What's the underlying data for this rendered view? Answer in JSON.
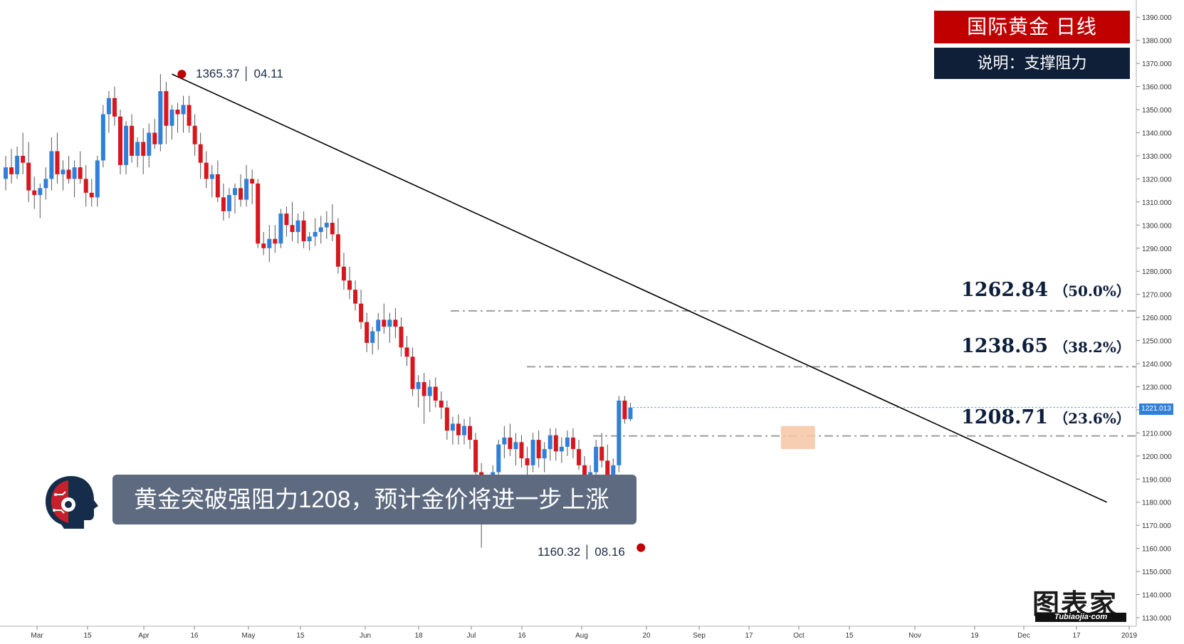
{
  "panel": {
    "title": "国际黄金  日线",
    "subtitle": "说明：支撑阻力"
  },
  "banner_text": "黄金突破强阻力1208，预计金价将进一步上涨",
  "logo": {
    "main": "图表家",
    "sub": "Tubiaojia·com"
  },
  "colors": {
    "up": "#2f80d8",
    "down": "#d8161d",
    "trendline": "#000000",
    "fib_line": "#9e9e9e",
    "marker": "#c00000",
    "panel_red": "#c00000",
    "panel_navy": "#0f1f38",
    "box": "#f7c6a5"
  },
  "chart_data": {
    "type": "candlestick",
    "instrument": "国际黄金",
    "timeframe": "日线",
    "ylim": [
      1130,
      1395
    ],
    "y_ticks": [
      "1390.000",
      "1380.000",
      "1370.000",
      "1360.000",
      "1350.000",
      "1340.000",
      "1330.000",
      "1320.000",
      "1310.000",
      "1300.000",
      "1290.000",
      "1280.000",
      "1270.000",
      "1260.000",
      "1250.000",
      "1240.000",
      "1230.000",
      "1220.000",
      "1210.000",
      "1200.000",
      "1190.000",
      "1180.000",
      "1170.000",
      "1160.000",
      "1150.000",
      "1140.000",
      "1130.000"
    ],
    "x_ticks": [
      "Mar",
      "15",
      "Apr",
      "16",
      "May",
      "15",
      "Jun",
      "18",
      "Jul",
      "16",
      "Aug",
      "20",
      "Sep",
      "17",
      "Oct",
      "15",
      "Nov",
      "19",
      "Dec",
      "17",
      "2019"
    ],
    "current_price": "1221.013",
    "high_label": "1365.37 │ 04.11",
    "low_label": "1160.32 │ 08.16",
    "fib_levels": [
      {
        "value": "1262.84",
        "pct": "（50.0%）"
      },
      {
        "value": "1238.65",
        "pct": "（38.2%）"
      },
      {
        "value": "1208.71",
        "pct": "（23.6%）"
      }
    ],
    "trendline": [
      [
        0,
        1365.37
      ],
      [
        143,
        1180
      ]
    ],
    "grid": false,
    "candles": [
      [
        1320,
        1330,
        1315,
        1325
      ],
      [
        1325,
        1333,
        1318,
        1322
      ],
      [
        1322,
        1334,
        1320,
        1330
      ],
      [
        1330,
        1340,
        1322,
        1327
      ],
      [
        1327,
        1336,
        1310,
        1315
      ],
      [
        1315,
        1321,
        1307,
        1313
      ],
      [
        1313,
        1318,
        1303,
        1316
      ],
      [
        1316,
        1325,
        1311,
        1320
      ],
      [
        1320,
        1338,
        1315,
        1332
      ],
      [
        1332,
        1340,
        1318,
        1322
      ],
      [
        1322,
        1328,
        1315,
        1324
      ],
      [
        1324,
        1330,
        1318,
        1320
      ],
      [
        1320,
        1328,
        1312,
        1325
      ],
      [
        1325,
        1332,
        1318,
        1320
      ],
      [
        1320,
        1326,
        1308,
        1314
      ],
      [
        1314,
        1320,
        1308,
        1312
      ],
      [
        1312,
        1330,
        1308,
        1328
      ],
      [
        1328,
        1352,
        1325,
        1348
      ],
      [
        1348,
        1358,
        1340,
        1355
      ],
      [
        1355,
        1360,
        1343,
        1347
      ],
      [
        1347,
        1350,
        1322,
        1326
      ],
      [
        1326,
        1345,
        1322,
        1343
      ],
      [
        1343,
        1348,
        1327,
        1330
      ],
      [
        1330,
        1338,
        1325,
        1336
      ],
      [
        1336,
        1342,
        1322,
        1330
      ],
      [
        1330,
        1344,
        1325,
        1340
      ],
      [
        1340,
        1346,
        1333,
        1335
      ],
      [
        1335,
        1365.37,
        1332,
        1358
      ],
      [
        1358,
        1362,
        1335,
        1343
      ],
      [
        1343,
        1352,
        1337,
        1350
      ],
      [
        1350,
        1353,
        1340,
        1348
      ],
      [
        1348,
        1356,
        1340,
        1352
      ],
      [
        1352,
        1356,
        1340,
        1343
      ],
      [
        1343,
        1348,
        1330,
        1335
      ],
      [
        1335,
        1340,
        1320,
        1327
      ],
      [
        1327,
        1332,
        1316,
        1320
      ],
      [
        1320,
        1326,
        1312,
        1322
      ],
      [
        1322,
        1328,
        1310,
        1312
      ],
      [
        1312,
        1318,
        1302,
        1306
      ],
      [
        1306,
        1316,
        1303,
        1313
      ],
      [
        1313,
        1318,
        1305,
        1316
      ],
      [
        1316,
        1322,
        1308,
        1311
      ],
      [
        1311,
        1326,
        1308,
        1320
      ],
      [
        1320,
        1324,
        1309,
        1318
      ],
      [
        1318,
        1320,
        1290,
        1292
      ],
      [
        1292,
        1297,
        1287,
        1290
      ],
      [
        1290,
        1300,
        1284,
        1294
      ],
      [
        1294,
        1300,
        1288,
        1292
      ],
      [
        1292,
        1307,
        1290,
        1305
      ],
      [
        1305,
        1308,
        1295,
        1300
      ],
      [
        1300,
        1310,
        1293,
        1297
      ],
      [
        1297,
        1305,
        1292,
        1302
      ],
      [
        1302,
        1306,
        1290,
        1293
      ],
      [
        1293,
        1297,
        1289,
        1295
      ],
      [
        1295,
        1303,
        1291,
        1297
      ],
      [
        1297,
        1304,
        1292,
        1299
      ],
      [
        1299,
        1306,
        1294,
        1301
      ],
      [
        1301,
        1309,
        1293,
        1296
      ],
      [
        1296,
        1303,
        1279,
        1282
      ],
      [
        1282,
        1288,
        1272,
        1276
      ],
      [
        1276,
        1282,
        1268,
        1272
      ],
      [
        1272,
        1276,
        1263,
        1266
      ],
      [
        1266,
        1272,
        1255,
        1258
      ],
      [
        1258,
        1262,
        1245,
        1249
      ],
      [
        1249,
        1256,
        1244,
        1254
      ],
      [
        1254,
        1262,
        1246,
        1259
      ],
      [
        1259,
        1266,
        1253,
        1256
      ],
      [
        1256,
        1262,
        1249,
        1259
      ],
      [
        1259,
        1264,
        1251,
        1256
      ],
      [
        1256,
        1260,
        1243,
        1247
      ],
      [
        1247,
        1252,
        1239,
        1243
      ],
      [
        1243,
        1247,
        1226,
        1229
      ],
      [
        1229,
        1235,
        1221,
        1232
      ],
      [
        1232,
        1236,
        1214,
        1226
      ],
      [
        1226,
        1233,
        1219,
        1230
      ],
      [
        1230,
        1234,
        1221,
        1224
      ],
      [
        1224,
        1228,
        1216,
        1221
      ],
      [
        1221,
        1224,
        1207,
        1211
      ],
      [
        1211,
        1217,
        1205,
        1214
      ],
      [
        1214,
        1218,
        1205,
        1209
      ],
      [
        1209,
        1216,
        1205,
        1213
      ],
      [
        1213,
        1217,
        1203,
        1207
      ],
      [
        1207,
        1210,
        1190,
        1193
      ],
      [
        1193,
        1197,
        1160.32,
        1175
      ],
      [
        1175,
        1188,
        1172,
        1185
      ],
      [
        1185,
        1196,
        1181,
        1193
      ],
      [
        1193,
        1207,
        1188,
        1205
      ],
      [
        1205,
        1213,
        1199,
        1208
      ],
      [
        1208,
        1214,
        1200,
        1203
      ],
      [
        1203,
        1210,
        1196,
        1206
      ],
      [
        1206,
        1209,
        1195,
        1199
      ],
      [
        1199,
        1204,
        1190,
        1196
      ],
      [
        1196,
        1210,
        1193,
        1207
      ],
      [
        1207,
        1211,
        1195,
        1199
      ],
      [
        1199,
        1206,
        1193,
        1203
      ],
      [
        1203,
        1212,
        1198,
        1209
      ],
      [
        1209,
        1212,
        1198,
        1202
      ],
      [
        1202,
        1208,
        1197,
        1204
      ],
      [
        1204,
        1211,
        1200,
        1208
      ],
      [
        1208,
        1212,
        1199,
        1203
      ],
      [
        1203,
        1207,
        1194,
        1196
      ],
      [
        1196,
        1200,
        1182,
        1185
      ],
      [
        1185,
        1196,
        1182,
        1193
      ],
      [
        1193,
        1207,
        1190,
        1204
      ],
      [
        1204,
        1210,
        1195,
        1198
      ],
      [
        1198,
        1205,
        1186,
        1189
      ],
      [
        1189,
        1199,
        1184,
        1196
      ],
      [
        1196,
        1226,
        1193,
        1224
      ],
      [
        1224,
        1226,
        1214,
        1216
      ],
      [
        1216,
        1223,
        1215,
        1221.013
      ]
    ]
  }
}
